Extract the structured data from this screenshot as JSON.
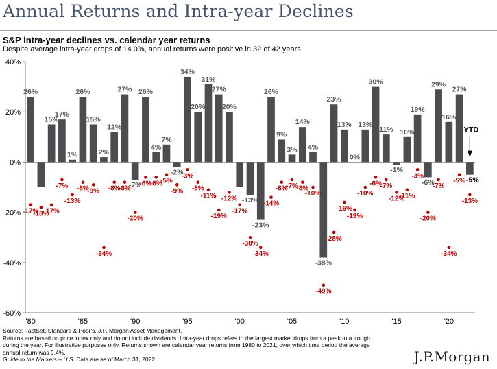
{
  "header": {
    "title": "Annual Returns and Intra-year Declines"
  },
  "chart_data": {
    "type": "bar",
    "title": "S&P intra-year declines vs. calendar year returns",
    "subtitle": "Despite average intra-year drops of 14.0%, annual returns were positive in 32 of 42 years",
    "ylim": [
      -60,
      40
    ],
    "yticks": [
      -60,
      -40,
      -20,
      0,
      20,
      40
    ],
    "ytick_labels": [
      "-60%",
      "-40%",
      "-20%",
      "0%",
      "20%",
      "40%"
    ],
    "xtick_labels": [
      "'80",
      "'85",
      "'90",
      "'95",
      "'00",
      "'05",
      "'10",
      "'15",
      "'20"
    ],
    "xtick_years": [
      1980,
      1985,
      1990,
      1995,
      2000,
      2005,
      2010,
      2015,
      2020
    ],
    "grid": false,
    "colors": {
      "bars": "#4d4d4f",
      "dots": "#c00000",
      "dot_labels": "#c00000",
      "bar_labels": "#595959"
    },
    "ytd_label": "YTD",
    "series": [
      {
        "kind": "bars",
        "years": [
          1980,
          1981,
          1982,
          1983,
          1984,
          1985,
          1986,
          1987,
          1988,
          1989,
          1990,
          1991,
          1992,
          1993,
          1994,
          1995,
          1996,
          1997,
          1998,
          1999,
          2000,
          2001,
          2002,
          2003,
          2004,
          2005,
          2006,
          2007,
          2008,
          2009,
          2010,
          2011,
          2012,
          2013,
          2014,
          2015,
          2016,
          2017,
          2018,
          2019,
          2020,
          2021,
          2022
        ],
        "values": [
          26,
          -10,
          15,
          17,
          1,
          26,
          15,
          2,
          12,
          27,
          -7,
          26,
          4,
          7,
          -2,
          34,
          20,
          31,
          27,
          20,
          -10,
          -13,
          -23,
          26,
          9,
          3,
          14,
          4,
          -38,
          23,
          13,
          0,
          13,
          30,
          11,
          -1,
          10,
          19,
          -6,
          29,
          16,
          27,
          -5
        ],
        "labels": [
          "26%",
          "",
          "15%",
          "17%",
          "1%",
          "26%",
          "15%",
          "2%",
          "12%",
          "27%",
          "-7%",
          "26%",
          "4%",
          "7%",
          "-2%",
          "34%",
          "20%",
          "31%",
          "27%",
          "20%",
          "",
          "-13%",
          "-23%",
          "26%",
          "9%",
          "3%",
          "14%",
          "4%",
          "-38%",
          "23%",
          "13%",
          "0%",
          "13%",
          "30%",
          "11%",
          "-1%",
          "10%",
          "19%",
          "-6%",
          "29%",
          "16%",
          "27%",
          "-5%"
        ]
      },
      {
        "kind": "dots",
        "years": [
          1980,
          1981,
          1982,
          1983,
          1984,
          1985,
          1986,
          1987,
          1988,
          1989,
          1990,
          1991,
          1992,
          1993,
          1994,
          1995,
          1996,
          1997,
          1998,
          1999,
          2000,
          2001,
          2002,
          2003,
          2004,
          2005,
          2006,
          2007,
          2008,
          2009,
          2010,
          2011,
          2012,
          2013,
          2014,
          2015,
          2016,
          2017,
          2018,
          2019,
          2020,
          2021,
          2022
        ],
        "values": [
          -17,
          -18,
          -17,
          -7,
          -13,
          -8,
          -9,
          -34,
          -8,
          -8,
          -20,
          -6,
          -6,
          -5,
          -9,
          -3,
          -8,
          -11,
          -19,
          -12,
          -17,
          -30,
          -34,
          -14,
          -8,
          -7,
          -8,
          -10,
          -49,
          -28,
          -16,
          -19,
          -10,
          -6,
          -7,
          -12,
          -11,
          -3,
          -20,
          -7,
          -34,
          -5,
          -13
        ],
        "labels": [
          "-17%",
          "-18%",
          "-17%",
          "-7%",
          "-13%",
          "-8%",
          "-9%",
          "-34%",
          "-8%",
          "-8%",
          "-20%",
          "-6%",
          "-6%",
          "-5%",
          "-9%",
          "-3%",
          "-8%",
          "-11%",
          "-19%",
          "-12%",
          "-17%",
          "-30%",
          "-34%",
          "-14%",
          "-8%",
          "-7%",
          "-8%",
          "-10%",
          "-49%",
          "-28%",
          "-16%",
          "-19%",
          "-10%",
          "-6%",
          "-7%",
          "-12%",
          "-11%",
          "-3%",
          "-20%",
          "-7%",
          "-34%",
          "-5%",
          "-13%"
        ]
      }
    ]
  },
  "footnotes": {
    "source": "Source: FactSet, Standard & Poor's, J.P. Morgan Asset Management.",
    "line1": "Returns are based on price index only and do not include dividends. Intra-year drops refers to the largest market drops from a peak to a trough",
    "line2": "during the year. For illustrative purposes only. Returns shown are calendar year returns from 1980 to 2021, over which time period the average",
    "line3": "annual return was 9.4%.",
    "guide": "Guide to the Markets – U.S.",
    "data_as_of": "Data are as of March 31, 2022."
  },
  "brand": {
    "name": "J.P.Morgan"
  }
}
